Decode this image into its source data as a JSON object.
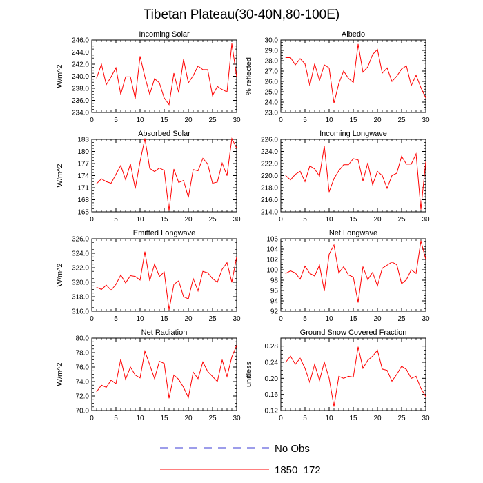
{
  "figure": {
    "title": "Tibetan Plateau(30-40N,80-100E)",
    "legend": [
      {
        "label": "No Obs",
        "color": "#3b3bd6",
        "dashed": true
      },
      {
        "label": "1850_172",
        "color": "#ff0000",
        "dashed": false
      }
    ]
  },
  "chart_data": [
    {
      "type": "line",
      "title": "Incoming Solar",
      "ylabel": "W/m^2",
      "xlim": [
        0,
        30
      ],
      "ylim": [
        234,
        246
      ],
      "yticks": [
        234,
        236,
        238,
        240,
        242,
        244,
        246
      ],
      "yticklabels": [
        "234.0",
        "236.0",
        "238.0",
        "240.0",
        "242.0",
        "244.0",
        "246.0"
      ],
      "xticks": [
        0,
        5,
        10,
        15,
        20,
        25,
        30
      ],
      "xticklabels": [
        "0",
        "5",
        "10",
        "15",
        "20",
        "25",
        "30"
      ],
      "series": [
        {
          "name": "1850_172",
          "color": "#ff0000",
          "x": [
            1,
            2,
            3,
            4,
            5,
            6,
            7,
            8,
            9,
            10,
            11,
            12,
            13,
            14,
            15,
            16,
            17,
            18,
            19,
            20,
            21,
            22,
            23,
            24,
            25,
            26,
            27,
            28,
            29,
            30
          ],
          "y": [
            239.7,
            242.0,
            238.6,
            239.9,
            241.4,
            237.0,
            239.9,
            239.9,
            236.3,
            243.3,
            239.9,
            237.0,
            239.6,
            238.9,
            236.4,
            235.3,
            240.5,
            237.3,
            242.8,
            238.9,
            240.1,
            241.7,
            241.1,
            241.1,
            236.8,
            238.3,
            237.8,
            237.4,
            245.4,
            239.9
          ]
        }
      ]
    },
    {
      "type": "line",
      "title": "Albedo",
      "ylabel": "% reflected",
      "xlim": [
        0,
        30
      ],
      "ylim": [
        23,
        30
      ],
      "yticks": [
        23,
        24,
        25,
        26,
        27,
        28,
        29,
        30
      ],
      "yticklabels": [
        "23.0",
        "24.0",
        "25.0",
        "26.0",
        "27.0",
        "28.0",
        "29.0",
        "30.0"
      ],
      "xticks": [
        0,
        5,
        10,
        15,
        20,
        25,
        30
      ],
      "xticklabels": [
        "0",
        "5",
        "10",
        "15",
        "20",
        "25",
        "30"
      ],
      "series": [
        {
          "name": "1850_172",
          "color": "#ff0000",
          "x": [
            1,
            2,
            3,
            4,
            5,
            6,
            7,
            8,
            9,
            10,
            11,
            12,
            13,
            14,
            15,
            16,
            17,
            18,
            19,
            20,
            21,
            22,
            23,
            24,
            25,
            26,
            27,
            28,
            29,
            30
          ],
          "y": [
            28.3,
            28.3,
            27.6,
            28.2,
            27.7,
            25.6,
            27.7,
            26.1,
            27.6,
            27.3,
            23.9,
            25.8,
            27.0,
            26.3,
            25.9,
            29.6,
            26.9,
            27.4,
            28.6,
            29.1,
            26.8,
            27.3,
            26.0,
            26.5,
            27.2,
            27.5,
            25.6,
            26.6,
            25.4,
            24.4
          ]
        }
      ]
    },
    {
      "type": "line",
      "title": "Absorbed Solar",
      "ylabel": "W/m^2",
      "xlim": [
        0,
        30
      ],
      "ylim": [
        165,
        183
      ],
      "yticks": [
        165,
        168,
        171,
        174,
        177,
        180,
        183
      ],
      "yticklabels": [
        "165",
        "168",
        "171",
        "174",
        "177",
        "180",
        "183"
      ],
      "xticks": [
        0,
        5,
        10,
        15,
        20,
        25,
        30
      ],
      "xticklabels": [
        "0",
        "5",
        "10",
        "15",
        "20",
        "25",
        "30"
      ],
      "series": [
        {
          "name": "1850_172",
          "color": "#ff0000",
          "x": [
            1,
            2,
            3,
            4,
            5,
            6,
            7,
            8,
            9,
            10,
            11,
            12,
            13,
            14,
            15,
            16,
            17,
            18,
            19,
            20,
            21,
            22,
            23,
            24,
            25,
            26,
            27,
            28,
            29,
            30
          ],
          "y": [
            172.0,
            173.2,
            172.5,
            172.1,
            174.3,
            176.5,
            173.0,
            176.9,
            170.8,
            177.5,
            183.2,
            175.8,
            175.0,
            175.9,
            175.3,
            165.3,
            175.6,
            172.3,
            172.8,
            168.6,
            175.5,
            175.2,
            178.3,
            176.9,
            172.1,
            172.4,
            177.1,
            174.0,
            183.2,
            180.8
          ]
        }
      ]
    },
    {
      "type": "line",
      "title": "Incoming Longwave",
      "ylabel": "",
      "xlim": [
        0,
        30
      ],
      "ylim": [
        214,
        226
      ],
      "yticks": [
        214,
        216,
        218,
        220,
        222,
        224,
        226
      ],
      "yticklabels": [
        "214.0",
        "216.0",
        "218.0",
        "220.0",
        "222.0",
        "224.0",
        "226.0"
      ],
      "xticks": [
        0,
        5,
        10,
        15,
        20,
        25,
        30
      ],
      "xticklabels": [
        "0",
        "5",
        "10",
        "15",
        "20",
        "25",
        "30"
      ],
      "series": [
        {
          "name": "1850_172",
          "color": "#ff0000",
          "x": [
            1,
            2,
            3,
            4,
            5,
            6,
            7,
            8,
            9,
            10,
            11,
            12,
            13,
            14,
            15,
            16,
            17,
            18,
            19,
            20,
            21,
            22,
            23,
            24,
            25,
            26,
            27,
            28,
            29,
            30
          ],
          "y": [
            220.0,
            219.3,
            220.2,
            220.7,
            219.0,
            221.6,
            221.1,
            219.9,
            224.9,
            217.3,
            219.5,
            220.8,
            221.8,
            221.8,
            222.8,
            222.6,
            219.1,
            222.1,
            218.5,
            220.7,
            220.0,
            217.9,
            220.0,
            220.4,
            223.2,
            221.9,
            221.9,
            223.6,
            214.4,
            222.3
          ]
        }
      ]
    },
    {
      "type": "line",
      "title": "Emitted Longwave",
      "ylabel": "W/m^2",
      "xlim": [
        0,
        30
      ],
      "ylim": [
        316,
        326
      ],
      "yticks": [
        316,
        318,
        320,
        322,
        324,
        326
      ],
      "yticklabels": [
        "316.0",
        "318.0",
        "320.0",
        "322.0",
        "324.0",
        "326.0"
      ],
      "xticks": [
        0,
        5,
        10,
        15,
        20,
        25,
        30
      ],
      "xticklabels": [
        "0",
        "5",
        "10",
        "15",
        "20",
        "25",
        "30"
      ],
      "series": [
        {
          "name": "1850_172",
          "color": "#ff0000",
          "x": [
            1,
            2,
            3,
            4,
            5,
            6,
            7,
            8,
            9,
            10,
            11,
            12,
            13,
            14,
            15,
            16,
            17,
            18,
            19,
            20,
            21,
            22,
            23,
            24,
            25,
            26,
            27,
            28,
            29,
            30
          ],
          "y": [
            319.3,
            319.0,
            319.6,
            318.9,
            319.7,
            321.0,
            319.9,
            320.9,
            320.8,
            320.3,
            324.2,
            320.2,
            322.5,
            320.8,
            321.4,
            316.2,
            319.7,
            320.2,
            318.0,
            317.7,
            320.5,
            318.8,
            321.5,
            321.3,
            320.5,
            320.0,
            321.8,
            322.7,
            320.0,
            323.5
          ]
        }
      ]
    },
    {
      "type": "line",
      "title": "Net Longwave",
      "ylabel": "",
      "xlim": [
        0,
        30
      ],
      "ylim": [
        92,
        106
      ],
      "yticks": [
        92,
        94,
        96,
        98,
        100,
        102,
        104,
        106
      ],
      "yticklabels": [
        "92",
        "94",
        "96",
        "98",
        "100",
        "102",
        "104",
        "106"
      ],
      "xticks": [
        0,
        5,
        10,
        15,
        20,
        25,
        30
      ],
      "xticklabels": [
        "0",
        "5",
        "10",
        "15",
        "20",
        "25",
        "30"
      ],
      "series": [
        {
          "name": "1850_172",
          "color": "#ff0000",
          "x": [
            1,
            2,
            3,
            4,
            5,
            6,
            7,
            8,
            9,
            10,
            11,
            12,
            13,
            14,
            15,
            16,
            17,
            18,
            19,
            20,
            21,
            22,
            23,
            24,
            25,
            26,
            27,
            28,
            29,
            30
          ],
          "y": [
            99.3,
            99.8,
            99.4,
            98.2,
            100.7,
            99.3,
            98.8,
            100.9,
            95.9,
            103.0,
            104.8,
            99.4,
            100.6,
            99.0,
            98.6,
            93.7,
            100.6,
            98.1,
            99.5,
            96.9,
            100.3,
            100.9,
            101.5,
            101.0,
            97.3,
            98.1,
            100.0,
            99.3,
            105.6,
            102.0
          ]
        }
      ]
    },
    {
      "type": "line",
      "title": "Net Radiation",
      "ylabel": "W/m^2",
      "xlim": [
        0,
        30
      ],
      "ylim": [
        70,
        80
      ],
      "yticks": [
        70,
        72,
        74,
        76,
        78,
        80
      ],
      "yticklabels": [
        "70.0",
        "72.0",
        "74.0",
        "76.0",
        "78.0",
        "80.0"
      ],
      "xticks": [
        0,
        5,
        10,
        15,
        20,
        25,
        30
      ],
      "xticklabels": [
        "0",
        "5",
        "10",
        "15",
        "20",
        "25",
        "30"
      ],
      "series": [
        {
          "name": "1850_172",
          "color": "#ff0000",
          "x": [
            1,
            2,
            3,
            4,
            5,
            6,
            7,
            8,
            9,
            10,
            11,
            12,
            13,
            14,
            15,
            16,
            17,
            18,
            19,
            20,
            21,
            22,
            23,
            24,
            25,
            26,
            27,
            28,
            29,
            30
          ],
          "y": [
            72.6,
            73.5,
            73.2,
            74.2,
            73.7,
            77.1,
            74.3,
            76.0,
            74.9,
            74.5,
            78.2,
            76.3,
            74.4,
            76.8,
            76.5,
            71.7,
            74.9,
            74.3,
            73.2,
            71.8,
            75.3,
            74.4,
            76.7,
            75.4,
            74.7,
            74.0,
            77.0,
            74.7,
            77.4,
            79.0
          ]
        }
      ]
    },
    {
      "type": "line",
      "title": "Ground Snow Covered Fraction",
      "ylabel": "unitless",
      "xlim": [
        0,
        30
      ],
      "ylim": [
        0.12,
        0.3
      ],
      "yticks": [
        0.12,
        0.16,
        0.2,
        0.24,
        0.28
      ],
      "yticklabels": [
        "0.12",
        "0.16",
        "0.20",
        "0.24",
        "0.28"
      ],
      "xticks": [
        0,
        5,
        10,
        15,
        20,
        25,
        30
      ],
      "xticklabels": [
        "0",
        "5",
        "10",
        "15",
        "20",
        "25",
        "30"
      ],
      "series": [
        {
          "name": "1850_172",
          "color": "#ff0000",
          "x": [
            1,
            2,
            3,
            4,
            5,
            6,
            7,
            8,
            9,
            10,
            11,
            12,
            13,
            14,
            15,
            16,
            17,
            18,
            19,
            20,
            21,
            22,
            23,
            24,
            25,
            26,
            27,
            28,
            29,
            30
          ],
          "y": [
            0.24,
            0.255,
            0.235,
            0.25,
            0.225,
            0.19,
            0.235,
            0.195,
            0.24,
            0.2,
            0.13,
            0.205,
            0.2,
            0.205,
            0.203,
            0.278,
            0.225,
            0.245,
            0.255,
            0.27,
            0.223,
            0.22,
            0.193,
            0.21,
            0.23,
            0.222,
            0.2,
            0.205,
            0.175,
            0.155
          ]
        }
      ]
    }
  ]
}
